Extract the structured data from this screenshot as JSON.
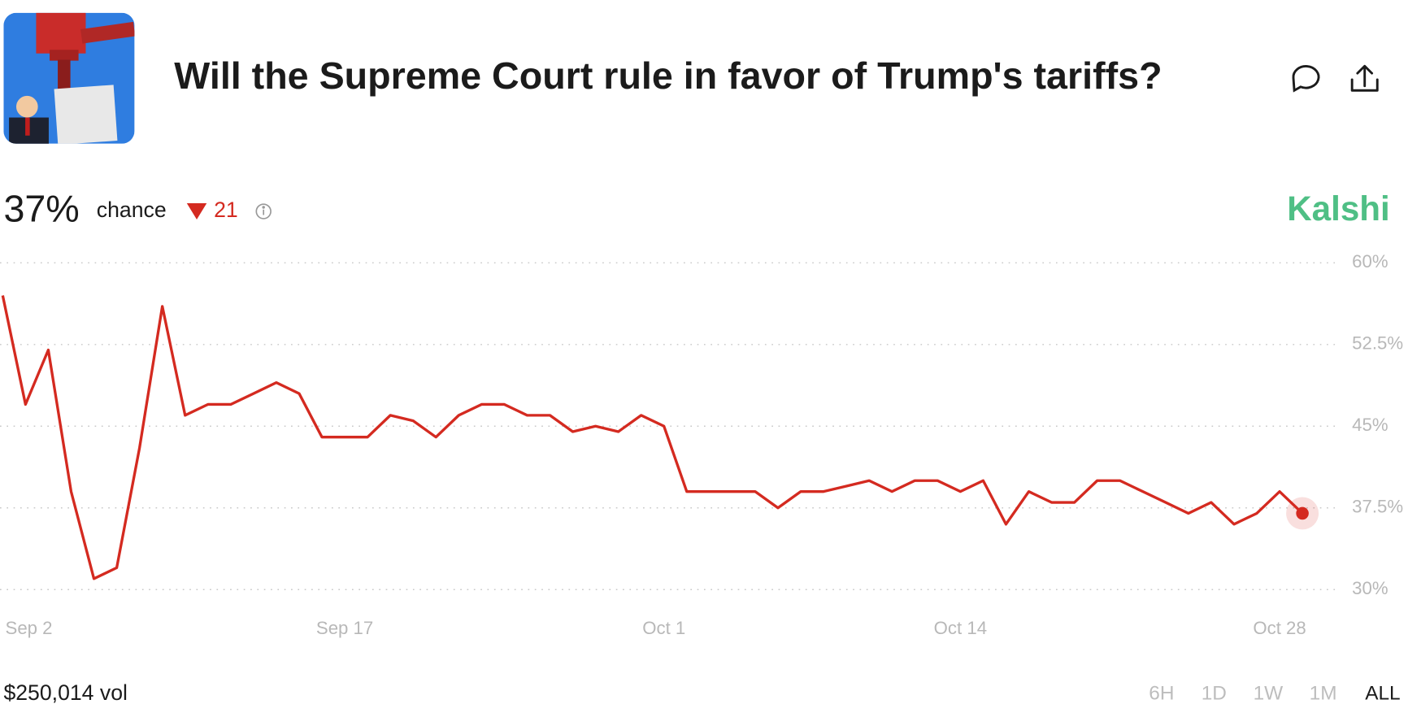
{
  "header": {
    "title": "Will the Supreme Court rule in favor of Trump's tariffs?"
  },
  "stats": {
    "chance_value": "37%",
    "chance_label": "chance",
    "change": "21"
  },
  "brand": "Kalshi",
  "chart_data": {
    "type": "line",
    "x": [
      "Sep 2",
      "Sep 3",
      "Sep 4",
      "Sep 5",
      "Sep 6",
      "Sep 7",
      "Sep 8",
      "Sep 9",
      "Sep 10",
      "Sep 11",
      "Sep 12",
      "Sep 13",
      "Sep 14",
      "Sep 15",
      "Sep 16",
      "Sep 17",
      "Sep 18",
      "Sep 19",
      "Sep 20",
      "Sep 21",
      "Sep 22",
      "Sep 23",
      "Sep 24",
      "Sep 25",
      "Sep 26",
      "Sep 27",
      "Sep 28",
      "Sep 29",
      "Sep 30",
      "Oct 1",
      "Oct 2",
      "Oct 3",
      "Oct 4",
      "Oct 5",
      "Oct 6",
      "Oct 7",
      "Oct 8",
      "Oct 9",
      "Oct 10",
      "Oct 11",
      "Oct 12",
      "Oct 13",
      "Oct 14",
      "Oct 15",
      "Oct 16",
      "Oct 17",
      "Oct 18",
      "Oct 19",
      "Oct 20",
      "Oct 21",
      "Oct 22",
      "Oct 23",
      "Oct 24",
      "Oct 25",
      "Oct 26",
      "Oct 27",
      "Oct 28",
      "Oct 29"
    ],
    "values": [
      57,
      47,
      52,
      39,
      31,
      32,
      43,
      56,
      46,
      47,
      47,
      48,
      49,
      48,
      44,
      44,
      44,
      46,
      45.5,
      44,
      46,
      47,
      47,
      46,
      46,
      44.5,
      45,
      44.5,
      46,
      45,
      39,
      39,
      39,
      39,
      37.5,
      39,
      39,
      39.5,
      40,
      39,
      40,
      40,
      39,
      40,
      36,
      39,
      38,
      38,
      40,
      40,
      39,
      38,
      37,
      38,
      36,
      37,
      39,
      37
    ],
    "color": "#d42a20",
    "ylim": [
      30,
      60
    ],
    "yticks": [
      {
        "value": 30,
        "label": "30%"
      },
      {
        "value": 37.5,
        "label": "37.5%"
      },
      {
        "value": 45,
        "label": "45%"
      },
      {
        "value": 52.5,
        "label": "52.5%"
      },
      {
        "value": 60,
        "label": "60%"
      }
    ],
    "xticks": [
      "Sep 2",
      "Sep 17",
      "Oct 1",
      "Oct 14",
      "Oct 28"
    ],
    "grid": true
  },
  "footer": {
    "volume": "$250,014 vol",
    "ranges": [
      "6H",
      "1D",
      "1W",
      "1M",
      "ALL"
    ]
  }
}
